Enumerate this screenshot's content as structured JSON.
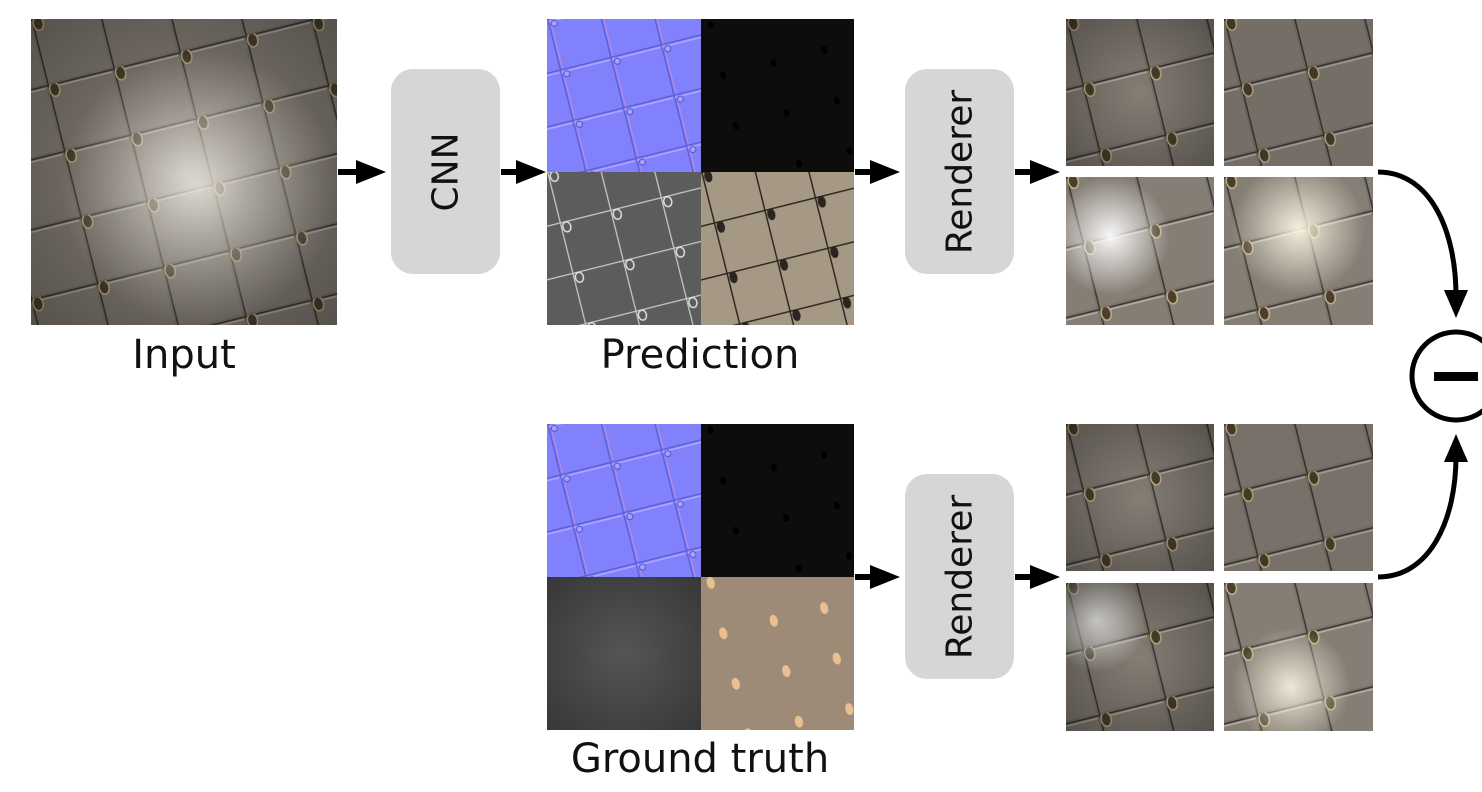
{
  "labels": {
    "input": "Input",
    "prediction": "Prediction",
    "ground_truth": "Ground truth",
    "cnn": "CNN",
    "renderer_top": "Renderer",
    "renderer_bottom": "Renderer",
    "difference_symbol": "−"
  },
  "icons": {
    "difference": "minus-circle-icon",
    "arrow": "arrow-right-icon"
  },
  "colors": {
    "box_fill": "#d6d6d6",
    "normal_map": "#8080ff",
    "specular_map": "#0f0d0c",
    "roughness_map": "#5e5e5e",
    "diffuse_map_prediction": "#a59884",
    "diffuse_map_ground_truth": "#9d8b78",
    "metal_tiles": "#7b746c"
  }
}
